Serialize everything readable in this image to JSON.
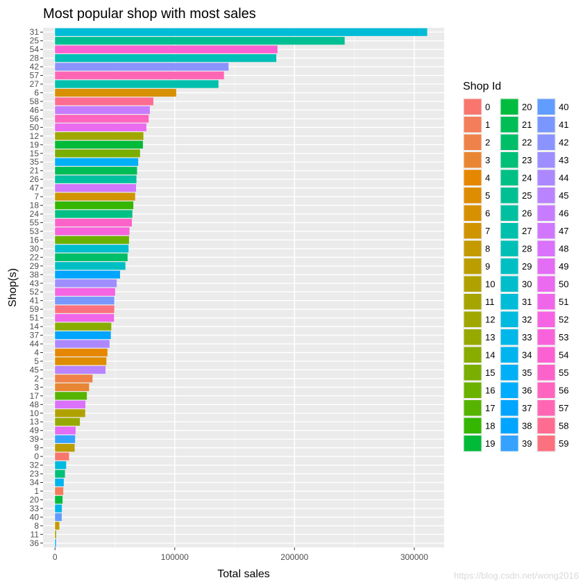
{
  "chart_data": {
    "type": "bar",
    "orientation": "horizontal",
    "title": "Most popular shop with most sales",
    "xlabel": "Total sales",
    "ylabel": "Shop(s)",
    "xlim": [
      -10000,
      325000
    ],
    "xticks": [
      0,
      100000,
      200000,
      300000
    ],
    "grid": true,
    "legend": {
      "title": "Shop Id",
      "position": "right",
      "columns": 3
    },
    "categories": [
      "31",
      "25",
      "54",
      "28",
      "42",
      "57",
      "27",
      "6",
      "58",
      "46",
      "56",
      "50",
      "12",
      "19",
      "15",
      "35",
      "21",
      "26",
      "47",
      "7",
      "18",
      "24",
      "55",
      "53",
      "16",
      "30",
      "22",
      "29",
      "38",
      "43",
      "52",
      "41",
      "59",
      "51",
      "14",
      "37",
      "44",
      "4",
      "5",
      "45",
      "2",
      "3",
      "17",
      "48",
      "10",
      "13",
      "49",
      "39",
      "9",
      "0",
      "32",
      "23",
      "34",
      "1",
      "20",
      "33",
      "40",
      "8",
      "11",
      "36"
    ],
    "values": [
      310800,
      241900,
      185800,
      184800,
      144900,
      141100,
      136500,
      101200,
      82100,
      79200,
      78200,
      76300,
      73800,
      73400,
      71000,
      69500,
      68500,
      68000,
      67700,
      66900,
      65400,
      64600,
      64200,
      62200,
      61800,
      61400,
      60600,
      58800,
      54300,
      51500,
      50200,
      49500,
      49500,
      49300,
      47000,
      46600,
      45500,
      43800,
      42900,
      42200,
      31300,
      28500,
      26600,
      25400,
      25200,
      20800,
      17200,
      16800,
      16400,
      11700,
      9300,
      8300,
      7300,
      6900,
      6300,
      5700,
      5600,
      3600,
      1000,
      800
    ]
  },
  "legend_items": [
    {
      "id": "0",
      "color": "#F8766D"
    },
    {
      "id": "1",
      "color": "#F47D5B"
    },
    {
      "id": "2",
      "color": "#EF8248"
    },
    {
      "id": "3",
      "color": "#E98633"
    },
    {
      "id": "4",
      "color": "#E58700"
    },
    {
      "id": "5",
      "color": "#DE8C00"
    },
    {
      "id": "6",
      "color": "#D79000"
    },
    {
      "id": "7",
      "color": "#CF9400"
    },
    {
      "id": "8",
      "color": "#C49A00"
    },
    {
      "id": "9",
      "color": "#BB9D00"
    },
    {
      "id": "10",
      "color": "#B1A100"
    },
    {
      "id": "11",
      "color": "#A6A400"
    },
    {
      "id": "12",
      "color": "#A0A700"
    },
    {
      "id": "13",
      "color": "#96A900"
    },
    {
      "id": "14",
      "color": "#88AC00"
    },
    {
      "id": "15",
      "color": "#7AAE00"
    },
    {
      "id": "16",
      "color": "#6BB100"
    },
    {
      "id": "17",
      "color": "#56B400"
    },
    {
      "id": "18",
      "color": "#35B600"
    },
    {
      "id": "19",
      "color": "#00BA38"
    },
    {
      "id": "20",
      "color": "#00BC3F"
    },
    {
      "id": "21",
      "color": "#00BD56"
    },
    {
      "id": "22",
      "color": "#00BE67"
    },
    {
      "id": "23",
      "color": "#00BF76"
    },
    {
      "id": "24",
      "color": "#00C085"
    },
    {
      "id": "25",
      "color": "#00C093"
    },
    {
      "id": "26",
      "color": "#00C0A0"
    },
    {
      "id": "27",
      "color": "#00C0AD"
    },
    {
      "id": "28",
      "color": "#00BFB7"
    },
    {
      "id": "29",
      "color": "#00BFC4"
    },
    {
      "id": "30",
      "color": "#00BDCC"
    },
    {
      "id": "31",
      "color": "#00BCD6"
    },
    {
      "id": "32",
      "color": "#00BAE0"
    },
    {
      "id": "33",
      "color": "#00B7E9"
    },
    {
      "id": "34",
      "color": "#00B4F0"
    },
    {
      "id": "35",
      "color": "#00B0F6"
    },
    {
      "id": "36",
      "color": "#00ACFC"
    },
    {
      "id": "37",
      "color": "#00A5FF"
    },
    {
      "id": "38",
      "color": "#00A5FF"
    },
    {
      "id": "39",
      "color": "#35A2FF"
    },
    {
      "id": "40",
      "color": "#619CFF"
    },
    {
      "id": "41",
      "color": "#7997FF"
    },
    {
      "id": "42",
      "color": "#8B93FF"
    },
    {
      "id": "43",
      "color": "#9E8EFF"
    },
    {
      "id": "44",
      "color": "#AC88FF"
    },
    {
      "id": "45",
      "color": "#BA83FF"
    },
    {
      "id": "46",
      "color": "#C77CFF"
    },
    {
      "id": "47",
      "color": "#D177FE"
    },
    {
      "id": "48",
      "color": "#DB72FB"
    },
    {
      "id": "49",
      "color": "#E46DF6"
    },
    {
      "id": "50",
      "color": "#EA6AF0"
    },
    {
      "id": "51",
      "color": "#F066EA"
    },
    {
      "id": "52",
      "color": "#F564E3"
    },
    {
      "id": "53",
      "color": "#F863DB"
    },
    {
      "id": "54",
      "color": "#FB61D2"
    },
    {
      "id": "55",
      "color": "#FC63C9"
    },
    {
      "id": "56",
      "color": "#FD65BF"
    },
    {
      "id": "57",
      "color": "#FF67B5"
    },
    {
      "id": "58",
      "color": "#FF6C91"
    },
    {
      "id": "59",
      "color": "#FC717F"
    }
  ],
  "tick_labels": [
    "0",
    "100000",
    "200000",
    "300000"
  ],
  "watermark": "https://blog.csdn.net/wong2016"
}
